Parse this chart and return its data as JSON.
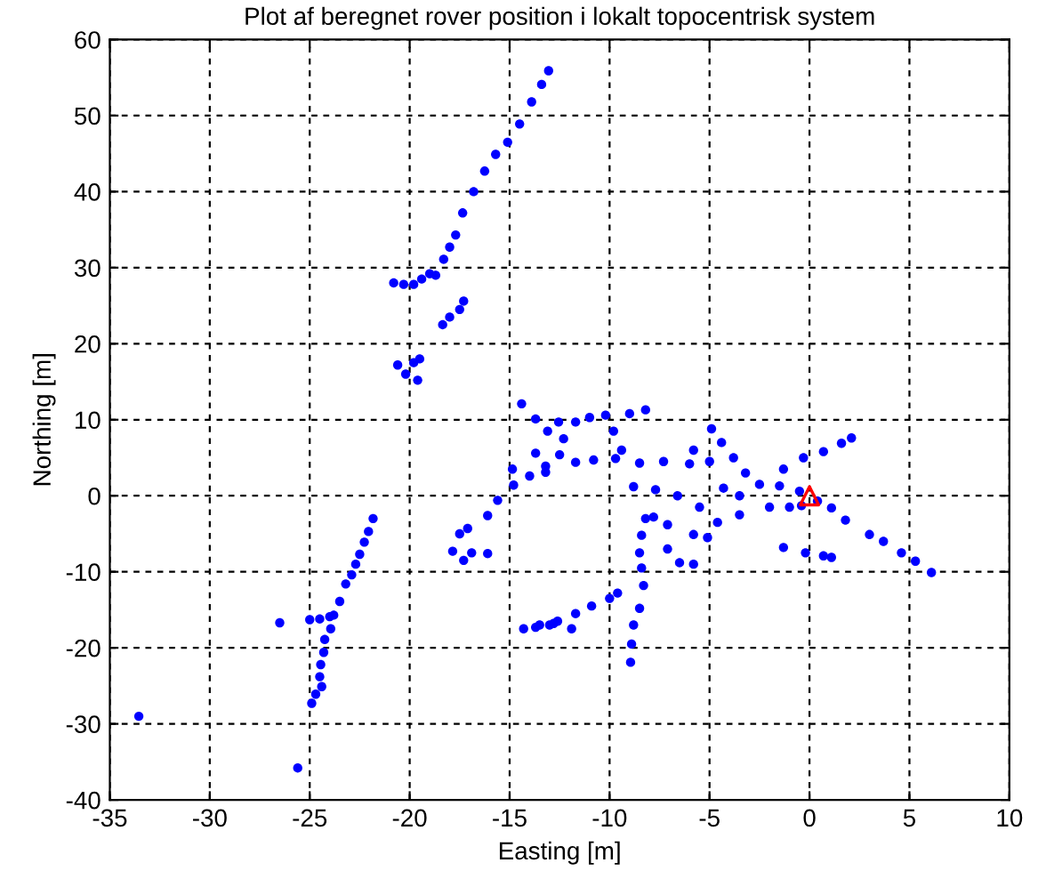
{
  "chart_data": {
    "type": "scatter",
    "title": "Plot af beregnet rover position i lokalt topocentrisk system",
    "xlabel": "Easting [m]",
    "ylabel": "Northing [m]",
    "xlim": [
      -35,
      10
    ],
    "ylim": [
      -40,
      60
    ],
    "xticks": [
      -35,
      -30,
      -25,
      -20,
      -15,
      -10,
      -5,
      0,
      5,
      10
    ],
    "yticks": [
      -40,
      -30,
      -20,
      -10,
      0,
      10,
      20,
      30,
      40,
      50,
      60
    ],
    "grid": true,
    "series": [
      {
        "color": "#0000ff",
        "marker": "circle",
        "x": [
          -13.05,
          -13.4,
          -13.9,
          -14.5,
          -15.1,
          -15.7,
          -16.25,
          -16.8,
          -17.35,
          -17.7,
          -18.0,
          -18.3,
          -18.7,
          -20.8,
          -20.3,
          -19.8,
          -19.4,
          -19.0,
          -18.35,
          -18.0,
          -17.5,
          -17.3,
          -20.6,
          -20.2,
          -19.8,
          -19.6,
          -19.5,
          -21.83,
          -22.06,
          -22.27,
          -22.5,
          -22.7,
          -22.9,
          -23.2,
          -23.5,
          -23.8,
          -25.0,
          -24.5,
          -24.0,
          -23.95,
          -24.25,
          -24.3,
          -24.45,
          -24.5,
          -24.4,
          -24.7,
          -24.9,
          -26.5,
          -33.55,
          -25.6,
          -17.85,
          -17.3,
          -16.9,
          -16.1,
          -17.5,
          -17.1,
          -16.1,
          -15.6,
          -14.8,
          -14.0,
          -13.2,
          -12.5,
          -13.7,
          -12.8,
          -14.86,
          -13.7,
          -13.1,
          -12.3,
          -14.4,
          -13.7,
          -12.55,
          -11.7,
          -11.0,
          -10.2,
          -9.0,
          -8.2,
          -13.2,
          -11.7,
          -10.8,
          -9.7,
          -8.5,
          -7.3,
          -6.0,
          -5.0,
          -9.8,
          -9.4,
          -5.8,
          -8.8,
          -7.7,
          -6.6,
          -5.5,
          -4.6,
          -5.8,
          -5.1,
          -4.9,
          -4.4,
          -3.8,
          -3.2,
          -4.3,
          -3.5,
          -2.5,
          -1.5,
          -0.5,
          -2.0,
          -3.5,
          -1.0,
          -0.4,
          -1.3,
          -0.3,
          0.7,
          1.6,
          2.1,
          0.4,
          1.1,
          1.8,
          3.0,
          3.7,
          4.6,
          5.3,
          6.1,
          -1.3,
          -0.2,
          0.7,
          1.1,
          -8.2,
          -8.4,
          -8.5,
          -8.4,
          -8.3,
          -8.5,
          -8.8,
          -8.9,
          -8.95,
          -7.8,
          -7.1,
          -7.1,
          -6.5,
          -5.8,
          -14.3,
          -13.5,
          -12.6,
          -11.7,
          -10.9,
          -10.0,
          -9.6,
          -11.9,
          -13.0
        ],
        "values": [
          55.9,
          54.1,
          51.8,
          48.9,
          46.5,
          44.9,
          42.7,
          40.0,
          37.2,
          34.3,
          32.7,
          31.1,
          29.0,
          28.0,
          27.8,
          27.8,
          28.5,
          29.2,
          22.5,
          23.5,
          24.5,
          25.6,
          17.2,
          16.0,
          17.5,
          15.2,
          18.0,
          -3.0,
          -4.7,
          -6.1,
          -7.7,
          -9.0,
          -10.4,
          -11.6,
          -13.9,
          -15.7,
          -16.3,
          -16.2,
          -15.9,
          -17.5,
          -18.9,
          -20.6,
          -22.2,
          -23.8,
          -25.1,
          -26.1,
          -27.3,
          -16.7,
          -29.0,
          -35.8,
          -7.3,
          -8.5,
          -7.5,
          -7.6,
          -5.0,
          -4.3,
          -2.6,
          -0.6,
          1.4,
          2.6,
          3.9,
          5.4,
          -17.3,
          -16.8,
          3.5,
          5.6,
          8.5,
          7.5,
          12.1,
          10.1,
          9.7,
          9.7,
          10.3,
          10.6,
          10.8,
          11.3,
          3.1,
          4.4,
          4.7,
          4.9,
          4.3,
          4.5,
          4.2,
          4.5,
          8.5,
          6.0,
          6.0,
          1.2,
          0.8,
          0.0,
          -1.5,
          -3.5,
          -5.1,
          -5.5,
          8.8,
          7.0,
          5.0,
          3.0,
          1.0,
          0.0,
          1.5,
          1.3,
          0.6,
          -1.5,
          -2.5,
          -1.5,
          -1.3,
          3.5,
          5.0,
          5.8,
          6.9,
          7.6,
          -0.7,
          -1.6,
          -3.2,
          -5.1,
          -6.0,
          -7.5,
          -8.6,
          -10.1,
          -6.8,
          -7.5,
          -7.9,
          -8.1,
          -3.0,
          -5.2,
          -7.5,
          -9.5,
          -11.8,
          -14.8,
          -17.0,
          -19.5,
          -21.9,
          -2.8,
          -3.8,
          -7.0,
          -8.8,
          -9.0,
          -17.5,
          -17.0,
          -16.5,
          -15.5,
          -14.5,
          -13.5,
          -12.8,
          -17.5,
          -17.0
        ]
      },
      {
        "color": "#ff0000",
        "marker": "triangle",
        "x": [
          0
        ],
        "values": [
          0
        ]
      }
    ]
  }
}
